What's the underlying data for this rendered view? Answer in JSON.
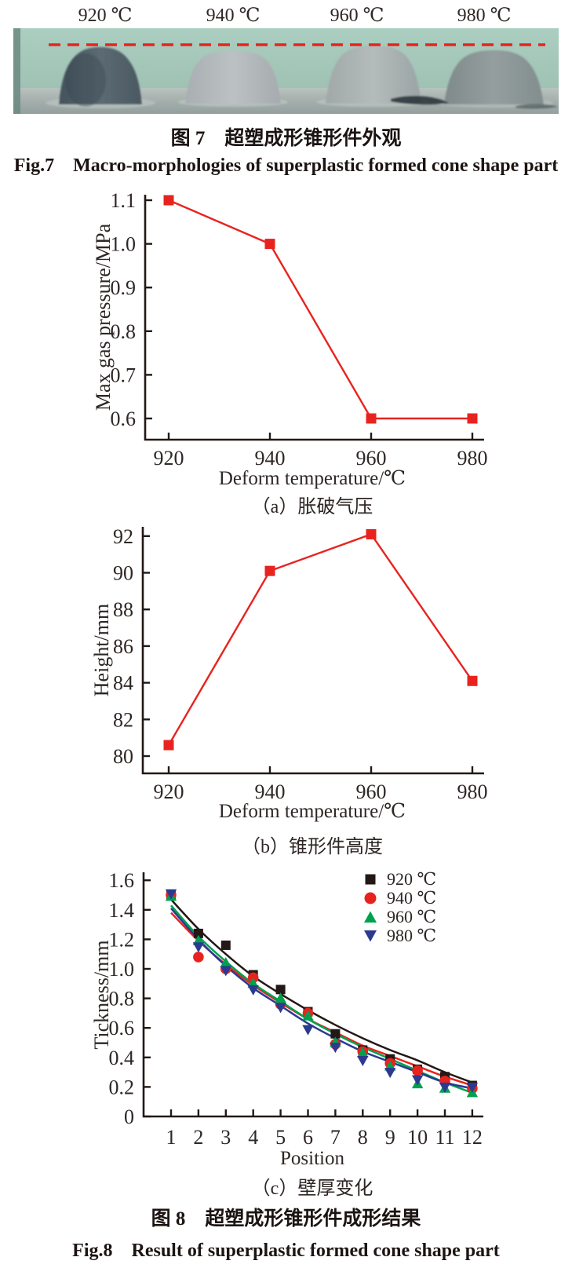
{
  "figure7": {
    "photo_temperature_labels": [
      "920 ℃",
      "940 ℃",
      "960 ℃",
      "980 ℃"
    ],
    "dashed_line_color": "#e8231f",
    "caption_zh": "图 7　超塑成形锥形件外观",
    "caption_en": "Fig.7　Macro-morphologies of superplastic formed cone shape part"
  },
  "figure8": {
    "caption_zh": "图 8　超塑成形锥形件成形结果",
    "caption_en": "Fig.8　Result of superplastic formed cone shape part"
  },
  "accent_color": "#e8231f",
  "chart_data": [
    {
      "id": "a",
      "type": "line",
      "sublabel": "（a）胀破气压",
      "xlabel": "Deform temperature/℃",
      "ylabel": "Max gas pressure/MPa",
      "x": [
        "920",
        "940",
        "960",
        "980"
      ],
      "ytick_labels": [
        "0.6",
        "0.7",
        "0.8",
        "0.9",
        "1.0",
        "1.1"
      ],
      "yticks": [
        0.6,
        0.7,
        0.8,
        0.9,
        1.0,
        1.1
      ],
      "ylim": [
        0.55,
        1.12
      ],
      "grid": false,
      "series": [
        {
          "name": "Max gas pressure",
          "color": "#e8231f",
          "marker": "square",
          "values": [
            1.1,
            1.0,
            0.6,
            0.6
          ]
        }
      ]
    },
    {
      "id": "b",
      "type": "line",
      "sublabel": "（b）锥形件高度",
      "xlabel": "Deform temperature/℃",
      "ylabel": "Height/mm",
      "x": [
        "920",
        "940",
        "960",
        "980"
      ],
      "ytick_labels": [
        "80",
        "82",
        "84",
        "86",
        "88",
        "90",
        "92"
      ],
      "yticks": [
        80,
        82,
        84,
        86,
        88,
        90,
        92
      ],
      "ylim": [
        79.0,
        92.6
      ],
      "grid": false,
      "series": [
        {
          "name": "Height",
          "color": "#e8231f",
          "marker": "square",
          "values": [
            80.6,
            90.1,
            92.1,
            84.1
          ]
        }
      ]
    },
    {
      "id": "c",
      "type": "scatter",
      "sublabel": "（c）壁厚变化",
      "xlabel": "Position",
      "ylabel": "Tickness/mm",
      "x": [
        "1",
        "2",
        "3",
        "4",
        "5",
        "6",
        "7",
        "8",
        "9",
        "10",
        "11",
        "12"
      ],
      "ytick_labels": [
        "0",
        "0.2",
        "0.4",
        "0.6",
        "0.8",
        "1.0",
        "1.2",
        "1.4",
        "1.6"
      ],
      "yticks": [
        0,
        0.2,
        0.4,
        0.6,
        0.8,
        1.0,
        1.2,
        1.4,
        1.6
      ],
      "ylim": [
        0,
        1.65
      ],
      "grid": false,
      "legend_position": "top-right",
      "series": [
        {
          "name": "920 ℃",
          "color": "#231815",
          "marker": "square",
          "values": [
            1.5,
            1.24,
            1.16,
            0.96,
            0.86,
            0.71,
            0.56,
            0.45,
            0.39,
            0.32,
            0.27,
            0.21
          ],
          "trend": [
            1.47,
            1.27,
            1.1,
            0.95,
            0.83,
            0.72,
            0.62,
            0.53,
            0.45,
            0.38,
            0.3,
            0.23
          ]
        },
        {
          "name": "940 ℃",
          "color": "#e8231f",
          "marker": "circle",
          "values": [
            1.5,
            1.08,
            1.0,
            0.94,
            0.76,
            0.7,
            0.49,
            0.44,
            0.36,
            0.31,
            0.24,
            0.19
          ],
          "trend": [
            1.38,
            1.19,
            1.03,
            0.89,
            0.77,
            0.66,
            0.57,
            0.48,
            0.41,
            0.34,
            0.27,
            0.21
          ]
        },
        {
          "name": "960 ℃",
          "color": "#00a14e",
          "marker": "triangle-up",
          "values": [
            1.49,
            1.19,
            1.04,
            0.9,
            0.8,
            0.68,
            0.5,
            0.43,
            0.34,
            0.22,
            0.19,
            0.16
          ],
          "trend": [
            1.43,
            1.22,
            1.05,
            0.9,
            0.78,
            0.66,
            0.56,
            0.47,
            0.39,
            0.31,
            0.23,
            0.16
          ]
        },
        {
          "name": "980 ℃",
          "color": "#2b3a8f",
          "marker": "triangle-down",
          "values": [
            1.51,
            1.15,
            0.99,
            0.86,
            0.74,
            0.59,
            0.47,
            0.38,
            0.3,
            0.25,
            0.2,
            0.2
          ],
          "trend": [
            1.41,
            1.2,
            1.02,
            0.87,
            0.75,
            0.63,
            0.53,
            0.44,
            0.37,
            0.3,
            0.23,
            0.19
          ]
        }
      ]
    }
  ]
}
